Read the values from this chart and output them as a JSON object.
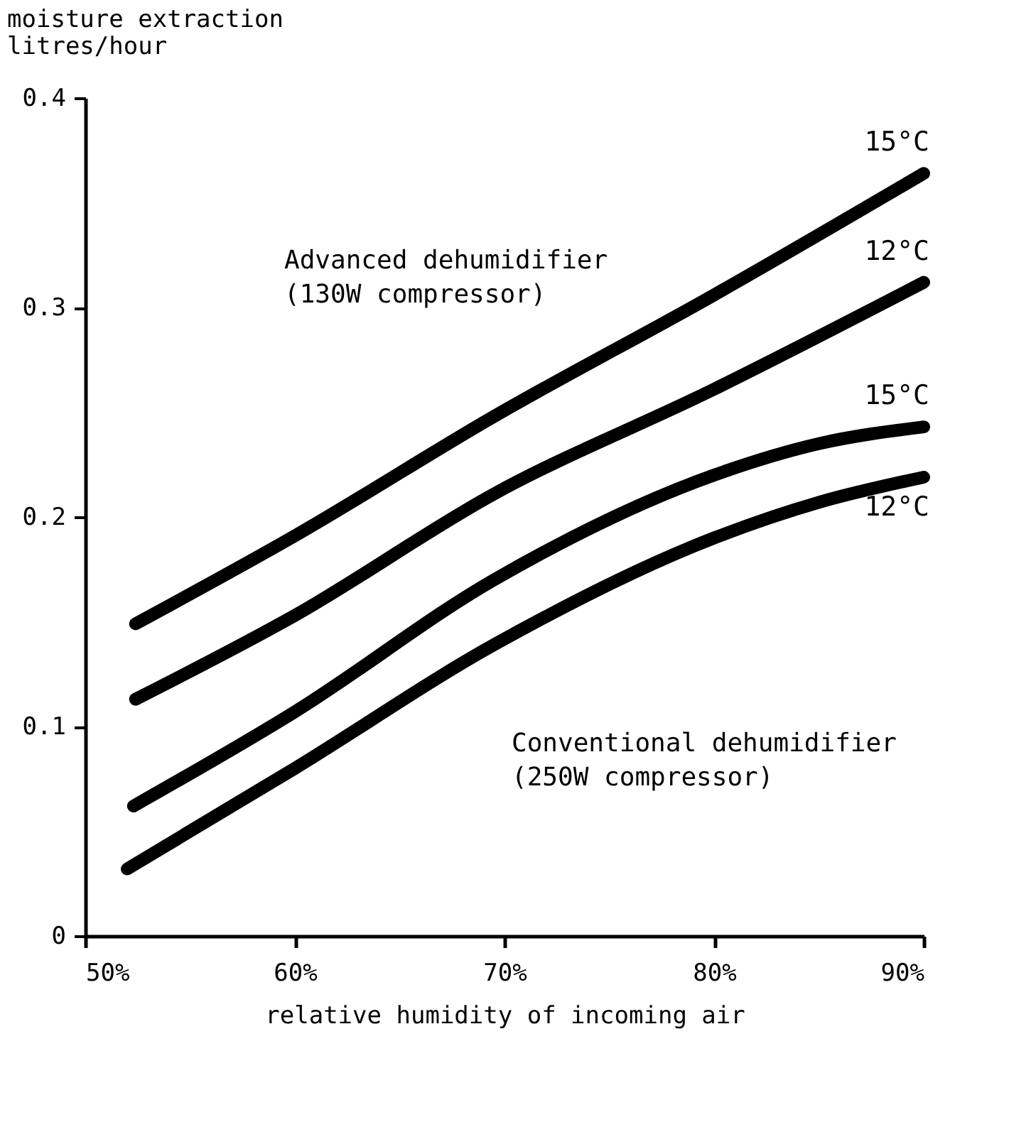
{
  "chart_data": {
    "type": "line",
    "ylabel": "moisture extraction\nlitres/hour",
    "xlabel": "relative humidity of incoming air",
    "xlim": [
      50,
      90
    ],
    "ylim": [
      0,
      0.4
    ],
    "xticks": [
      {
        "value": 50,
        "label": "50%"
      },
      {
        "value": 60,
        "label": "60%"
      },
      {
        "value": 70,
        "label": "70%"
      },
      {
        "value": 80,
        "label": "80%"
      },
      {
        "value": 90,
        "label": "90%"
      }
    ],
    "yticks": [
      0,
      0.1,
      0.2,
      0.3,
      0.4
    ],
    "grid": false,
    "marker": "none",
    "line_style": "solid",
    "series": [
      {
        "name": "15°C",
        "color": "#000000",
        "x": [
          52.4,
          60,
          69.5,
          80,
          90
        ],
        "values": [
          0.149,
          0.191,
          0.248,
          0.306,
          0.364
        ]
      },
      {
        "name": "12°C",
        "color": "#000000",
        "x": [
          52.4,
          60,
          69.5,
          80,
          90
        ],
        "values": [
          0.113,
          0.153,
          0.211,
          0.261,
          0.312
        ]
      },
      {
        "name": "15°C",
        "color": "#000000",
        "x": [
          52.3,
          60,
          69.5,
          80,
          85,
          90
        ],
        "values": [
          0.062,
          0.107,
          0.17,
          0.22,
          0.235,
          0.243
        ]
      },
      {
        "name": "12°C",
        "color": "#000000",
        "x": [
          52,
          60,
          69.5,
          80,
          85,
          90
        ],
        "values": [
          0.032,
          0.08,
          0.139,
          0.19,
          0.207,
          0.219
        ]
      }
    ],
    "annotations": [
      "Advanced dehumidifier\n(130W compressor)",
      "Conventional dehumidifier\n(250W compressor)"
    ]
  }
}
